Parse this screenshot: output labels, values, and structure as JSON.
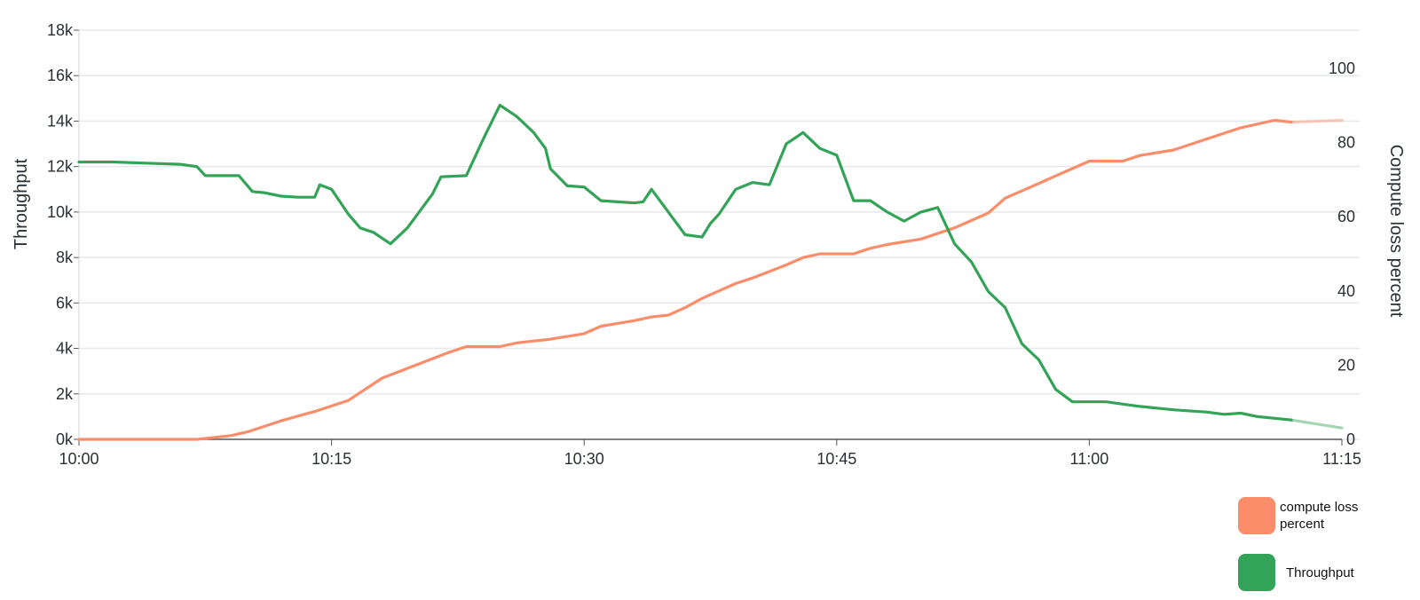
{
  "chart_data": {
    "type": "line",
    "x_ticks": [
      "10:00",
      "10:15",
      "10:30",
      "10:45",
      "11:00",
      "11:15"
    ],
    "x_range": [
      "10:00",
      "11:15"
    ],
    "y_left": {
      "label": "Throughput",
      "ticks": [
        "0k",
        "2k",
        "4k",
        "6k",
        "8k",
        "10k",
        "12k",
        "14k",
        "16k",
        "18k"
      ],
      "range": [
        0,
        18000
      ]
    },
    "y_right": {
      "label": "Compute loss percent",
      "ticks": [
        "0",
        "20",
        "40",
        "60",
        "80",
        "100"
      ],
      "range": [
        0,
        110
      ]
    },
    "grid": true,
    "legend_position": "bottom-right",
    "series": [
      {
        "name": "compute loss percent",
        "axis": "right",
        "color": "#fc8d6b",
        "points": [
          [
            "10:00",
            0
          ],
          [
            "10:07",
            0
          ],
          [
            "10:09",
            1
          ],
          [
            "10:10",
            2
          ],
          [
            "10:11",
            3.5
          ],
          [
            "10:12",
            5
          ],
          [
            "10:14",
            7.5
          ],
          [
            "10:15",
            9
          ],
          [
            "10:16",
            10.5
          ],
          [
            "10:17",
            13.5
          ],
          [
            "10:18",
            16.5
          ],
          [
            "10:20",
            20
          ],
          [
            "10:22",
            23.5
          ],
          [
            "10:23",
            25
          ],
          [
            "10:25",
            25
          ],
          [
            "10:26",
            26
          ],
          [
            "10:28",
            27
          ],
          [
            "10:30",
            28.5
          ],
          [
            "10:31",
            30.5
          ],
          [
            "10:33",
            32
          ],
          [
            "10:34",
            33
          ],
          [
            "10:35",
            33.5
          ],
          [
            "10:36",
            35.5
          ],
          [
            "10:37",
            38
          ],
          [
            "10:39",
            42
          ],
          [
            "10:40",
            43.5
          ],
          [
            "10:42",
            47
          ],
          [
            "10:43",
            49
          ],
          [
            "10:44",
            50
          ],
          [
            "10:46",
            50
          ],
          [
            "10:47",
            51.5
          ],
          [
            "10:48",
            52.5
          ],
          [
            "10:50",
            54
          ],
          [
            "10:52",
            57
          ],
          [
            "10:54",
            61
          ],
          [
            "10:55",
            65
          ],
          [
            "10:57",
            69
          ],
          [
            "10:58",
            71
          ],
          [
            "10:59",
            73
          ],
          [
            "11:00",
            75
          ],
          [
            "11:02",
            75
          ],
          [
            "11:03",
            76.5
          ],
          [
            "11:05",
            78
          ],
          [
            "11:07",
            81
          ],
          [
            "11:09",
            84
          ],
          [
            "11:11",
            86
          ],
          [
            "11:12",
            85.5
          ],
          [
            "11:15",
            86
          ]
        ]
      },
      {
        "name": "Throughput",
        "axis": "left",
        "color": "#33a357",
        "points": [
          [
            "10:00",
            12200
          ],
          [
            "10:02",
            12200
          ],
          [
            "10:04",
            12150
          ],
          [
            "10:06",
            12100
          ],
          [
            "10:07",
            12000
          ],
          [
            "10:07.5",
            11600
          ],
          [
            "10:09.5",
            11600
          ],
          [
            "10:10.3",
            10900
          ],
          [
            "10:11",
            10850
          ],
          [
            "10:12",
            10700
          ],
          [
            "10:13",
            10650
          ],
          [
            "10:14",
            10650
          ],
          [
            "10:14.3",
            11200
          ],
          [
            "10:15",
            11000
          ],
          [
            "10:16",
            9900
          ],
          [
            "10:16.7",
            9300
          ],
          [
            "10:17.5",
            9100
          ],
          [
            "10:18.5",
            8600
          ],
          [
            "10:19.5",
            9300
          ],
          [
            "10:21",
            10800
          ],
          [
            "10:21.5",
            11550
          ],
          [
            "10:23",
            11600
          ],
          [
            "10:24",
            13200
          ],
          [
            "10:25",
            14700
          ],
          [
            "10:26",
            14200
          ],
          [
            "10:27",
            13500
          ],
          [
            "10:27.7",
            12800
          ],
          [
            "10:28",
            11900
          ],
          [
            "10:29",
            11150
          ],
          [
            "10:30",
            11100
          ],
          [
            "10:31",
            10500
          ],
          [
            "10:32",
            10450
          ],
          [
            "10:33",
            10400
          ],
          [
            "10:33.5",
            10450
          ],
          [
            "10:34",
            11000
          ],
          [
            "10:35",
            10000
          ],
          [
            "10:36",
            9000
          ],
          [
            "10:37",
            8900
          ],
          [
            "10:37.5",
            9500
          ],
          [
            "10:38",
            9900
          ],
          [
            "10:39",
            11000
          ],
          [
            "10:40",
            11300
          ],
          [
            "10:41",
            11200
          ],
          [
            "10:42",
            13000
          ],
          [
            "10:43",
            13500
          ],
          [
            "10:44",
            12800
          ],
          [
            "10:45",
            12500
          ],
          [
            "10:46",
            10500
          ],
          [
            "10:47",
            10500
          ],
          [
            "10:48",
            10000
          ],
          [
            "10:49",
            9600
          ],
          [
            "10:50",
            10000
          ],
          [
            "10:51",
            10200
          ],
          [
            "10:52",
            8600
          ],
          [
            "10:53",
            7800
          ],
          [
            "10:54",
            6500
          ],
          [
            "10:55",
            5800
          ],
          [
            "10:56",
            4200
          ],
          [
            "10:57",
            3500
          ],
          [
            "10:58",
            2200
          ],
          [
            "10:59",
            1650
          ],
          [
            "11:01",
            1650
          ],
          [
            "11:02",
            1550
          ],
          [
            "11:03",
            1450
          ],
          [
            "11:05",
            1300
          ],
          [
            "11:07",
            1200
          ],
          [
            "11:08",
            1100
          ],
          [
            "11:09",
            1150
          ],
          [
            "11:10",
            1000
          ],
          [
            "11:12",
            850
          ],
          [
            "11:15",
            500
          ]
        ]
      }
    ]
  }
}
